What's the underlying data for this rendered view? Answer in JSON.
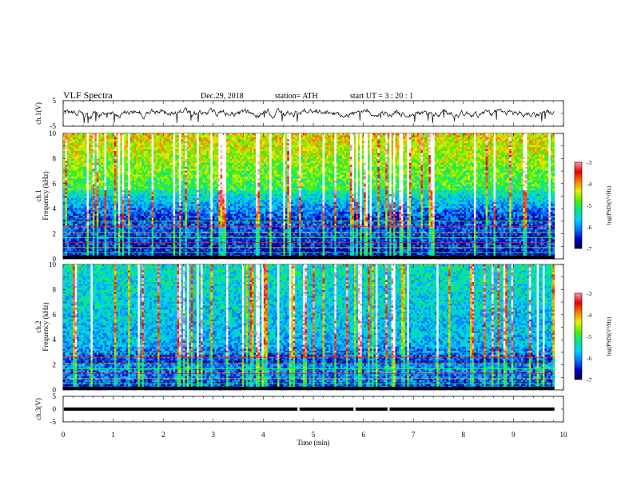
{
  "header": {
    "title": "VLF Spectra",
    "date": "Dec.29, 2018",
    "station": "station= ATH",
    "start": "start UT = 3 : 20 : 1"
  },
  "chart_data": [
    {
      "type": "line",
      "name": "ch1-waveform",
      "ylabel": "ch.1(V)",
      "ylim": [
        -5,
        5
      ],
      "yticks": [
        "5",
        "-5"
      ],
      "xlim": [
        0,
        10
      ],
      "x_extent_min": 9.82,
      "baseline_v": 0
    },
    {
      "type": "heatmap",
      "name": "ch1-spectrogram",
      "ylabel": "ch.1\nFrequency (kHz)",
      "ylabel_top": "ch.1",
      "ylabel_bottom": "Frequency (kHz)",
      "ylim": [
        0,
        10
      ],
      "yticks": [
        "0",
        "2",
        "4",
        "6",
        "8",
        "10"
      ],
      "xlim": [
        0,
        10
      ],
      "colorbar": {
        "label": "log(PSD)(V²/Hz)",
        "range": [
          -7,
          -3
        ],
        "ticks": [
          "-3",
          "-4",
          "-5",
          "-6",
          "-7"
        ]
      }
    },
    {
      "type": "heatmap",
      "name": "ch2-spectrogram",
      "ylabel": "ch.2\nFrequency (kHz)",
      "ylabel_top": "ch.2",
      "ylabel_bottom": "Frequency (kHz)",
      "ylim": [
        0,
        10
      ],
      "yticks": [
        "0",
        "2",
        "4",
        "6",
        "8",
        "10"
      ],
      "xlim": [
        0,
        10
      ],
      "colorbar": {
        "label": "log(PSD)(V²/Hz)",
        "range": [
          -7,
          -3
        ],
        "ticks": [
          "-3",
          "-4",
          "-5",
          "-6",
          "-7"
        ]
      }
    },
    {
      "type": "line",
      "name": "ch3-signal",
      "ylabel": "ch.3(V)",
      "ylim": [
        -5,
        5
      ],
      "yticks": [
        "5",
        "0",
        "-5"
      ],
      "xlim": [
        0,
        10
      ],
      "level_v": 0,
      "gaps_min": [
        4.7,
        5.82,
        6.5
      ]
    }
  ],
  "xaxis": {
    "label": "Time (min)",
    "ticks": [
      "0",
      "1",
      "2",
      "3",
      "4",
      "5",
      "6",
      "7",
      "8",
      "9",
      "10"
    ],
    "range": [
      0,
      10
    ]
  },
  "colors": {
    "spectro_scale": [
      "#000000",
      "#00004a",
      "#0000c8",
      "#0078ff",
      "#00d2ff",
      "#00e68c",
      "#50f000",
      "#e6f000",
      "#ff7800",
      "#e60000",
      "#ff96b4",
      "#ffffff"
    ],
    "trace": "#000000"
  }
}
